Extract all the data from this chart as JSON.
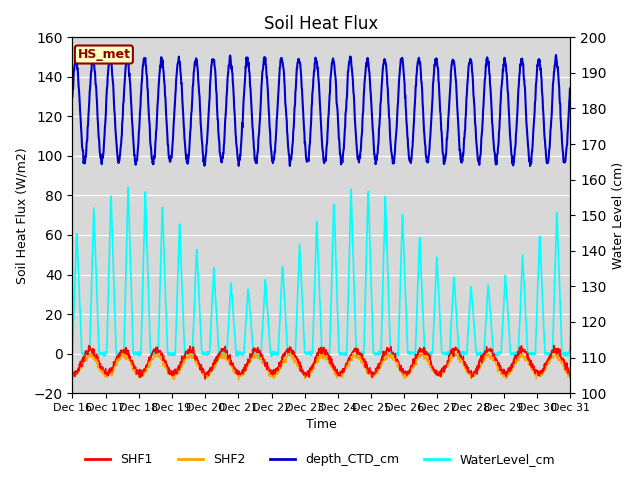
{
  "title": "Soil Heat Flux",
  "xlabel": "Time",
  "ylabel_left": "Soil Heat Flux (W/m2)",
  "ylabel_right": "Water Level (cm)",
  "ylim_left": [
    -20,
    160
  ],
  "ylim_right": [
    100,
    200
  ],
  "xlim_hours": [
    0,
    360
  ],
  "xtick_hours": [
    0,
    24,
    48,
    72,
    96,
    120,
    144,
    168,
    192,
    216,
    240,
    264,
    288,
    312,
    336,
    360
  ],
  "xtick_labels": [
    "Dec 16",
    "Dec 17",
    "Dec 18",
    "Dec 19",
    "Dec 20",
    "Dec 21",
    "Dec 22",
    "Dec 23",
    "Dec 24",
    "Dec 25",
    "Dec 26",
    "Dec 27",
    "Dec 28",
    "Dec 29",
    "Dec 30",
    "Dec 31"
  ],
  "annotation_text": "HS_met",
  "annotation_fg": "#8B0000",
  "annotation_bg": "#FFFFC0",
  "color_SHF1": "#FF0000",
  "color_SHF2": "#FFA500",
  "color_depth": "#0000CC",
  "color_water": "#00FFFF",
  "bg_color": "#D8D8D8",
  "grid_color": "#FFFFFF",
  "title_fontsize": 12,
  "axis_fontsize": 9,
  "tick_fontsize": 8,
  "legend_fontsize": 9
}
